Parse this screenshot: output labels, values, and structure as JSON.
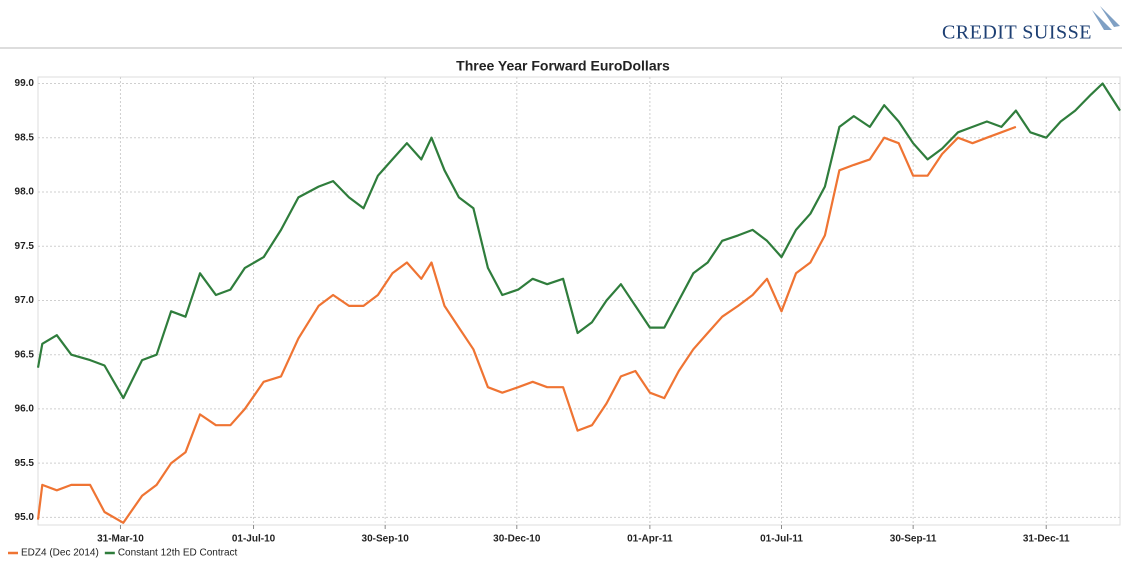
{
  "logo": "CREDIT SUISSE",
  "chart_data": {
    "type": "line",
    "title": "Three Year Forward EuroDollars",
    "x": [
      "2010-02-02",
      "2010-02-05",
      "2010-02-15",
      "2010-02-25",
      "2010-03-10",
      "2010-03-20",
      "2010-04-02",
      "2010-04-15",
      "2010-04-25",
      "2010-05-05",
      "2010-05-15",
      "2010-05-25",
      "2010-06-05",
      "2010-06-15",
      "2010-06-25",
      "2010-07-08",
      "2010-07-20",
      "2010-08-01",
      "2010-08-15",
      "2010-08-25",
      "2010-09-05",
      "2010-09-15",
      "2010-09-25",
      "2010-10-05",
      "2010-10-15",
      "2010-10-25",
      "2010-11-01",
      "2010-11-10",
      "2010-11-20",
      "2010-11-30",
      "2010-12-10",
      "2010-12-20",
      "2010-12-31",
      "2011-01-10",
      "2011-01-20",
      "2011-01-31",
      "2011-02-10",
      "2011-02-20",
      "2011-03-02",
      "2011-03-12",
      "2011-03-22",
      "2011-04-01",
      "2011-04-11",
      "2011-04-21",
      "2011-05-01",
      "2011-05-11",
      "2011-05-21",
      "2011-06-01",
      "2011-06-11",
      "2011-06-21",
      "2011-07-01",
      "2011-07-11",
      "2011-07-21",
      "2011-07-31",
      "2011-08-10",
      "2011-08-20",
      "2011-08-31",
      "2011-09-10",
      "2011-09-20",
      "2011-09-30",
      "2011-10-10",
      "2011-10-20",
      "2011-10-31",
      "2011-11-10",
      "2011-11-20",
      "2011-11-30",
      "2011-12-10",
      "2011-12-20",
      "2011-12-31",
      "2012-01-10",
      "2012-01-20",
      "2012-01-31",
      "2012-02-08",
      "2012-02-20"
    ],
    "series": [
      {
        "name": "EDZ4 (Dec 2014)",
        "color": "#ef7433",
        "values": [
          94.98,
          95.3,
          95.25,
          95.3,
          95.3,
          95.05,
          94.95,
          95.2,
          95.3,
          95.5,
          95.6,
          95.95,
          95.85,
          95.85,
          96.0,
          96.25,
          96.3,
          96.65,
          96.95,
          97.05,
          96.95,
          96.95,
          97.05,
          97.25,
          97.35,
          97.2,
          97.35,
          96.95,
          96.75,
          96.55,
          96.2,
          96.15,
          96.2,
          96.25,
          96.2,
          96.2,
          95.8,
          95.85,
          96.05,
          96.3,
          96.35,
          96.15,
          96.1,
          96.35,
          96.55,
          96.7,
          96.85,
          96.95,
          97.05,
          97.2,
          96.9,
          97.25,
          97.35,
          97.6,
          98.2,
          98.25,
          98.3,
          98.5,
          98.45,
          98.15,
          98.15,
          98.35,
          98.5,
          98.45,
          98.5,
          98.55,
          98.6,
          null,
          null,
          null,
          null,
          null,
          null,
          null
        ]
      },
      {
        "name": "Constant 12th ED Contract",
        "color": "#2f7d3c",
        "values": [
          96.38,
          96.6,
          96.68,
          96.5,
          96.45,
          96.4,
          96.1,
          96.45,
          96.5,
          96.9,
          96.85,
          97.25,
          97.05,
          97.1,
          97.3,
          97.4,
          97.65,
          97.95,
          98.05,
          98.1,
          97.95,
          97.85,
          98.15,
          98.3,
          98.45,
          98.3,
          98.5,
          98.2,
          97.95,
          97.85,
          97.3,
          97.05,
          97.1,
          97.2,
          97.15,
          97.2,
          96.7,
          96.8,
          97.0,
          97.15,
          96.95,
          96.75,
          96.75,
          97.0,
          97.25,
          97.35,
          97.55,
          97.6,
          97.65,
          97.55,
          97.4,
          97.65,
          97.8,
          98.05,
          98.6,
          98.7,
          98.6,
          98.8,
          98.65,
          98.45,
          98.3,
          98.4,
          98.55,
          98.6,
          98.65,
          98.6,
          98.75,
          98.55,
          98.5,
          98.65,
          98.75,
          98.9,
          99.0,
          98.75
        ]
      }
    ],
    "xlim": [
      "2010-02-02",
      "2012-02-20"
    ],
    "xticks": [
      {
        "value": "2010-03-31",
        "label": "31-Mar-10"
      },
      {
        "value": "2010-07-01",
        "label": "01-Jul-10"
      },
      {
        "value": "2010-09-30",
        "label": "30-Sep-10"
      },
      {
        "value": "2010-12-30",
        "label": "30-Dec-10"
      },
      {
        "value": "2011-04-01",
        "label": "01-Apr-11"
      },
      {
        "value": "2011-07-01",
        "label": "01-Jul-11"
      },
      {
        "value": "2011-09-30",
        "label": "30-Sep-11"
      },
      {
        "value": "2011-12-31",
        "label": "31-Dec-11"
      }
    ],
    "ylim": [
      94.93,
      99.06
    ],
    "yticks": [
      {
        "value": 95,
        "label": "95.0"
      },
      95.5,
      {
        "value": 96,
        "label": "96.0"
      },
      96.5,
      {
        "value": 97,
        "label": "97.0"
      },
      97.5,
      {
        "value": 98,
        "label": "98.0"
      },
      98.5,
      {
        "value": 99,
        "label": "99.0"
      }
    ],
    "grid": true,
    "legend": "bottom-left"
  }
}
